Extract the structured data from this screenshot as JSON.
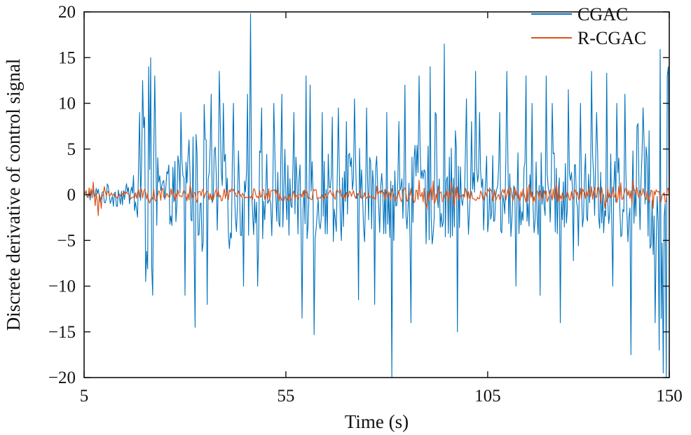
{
  "chart_data": {
    "type": "line",
    "xlabel": "Time (s)",
    "ylabel": "Discrete derivative of control signal",
    "xlim": [
      5,
      150
    ],
    "ylim": [
      -20,
      20
    ],
    "x_ticks": [
      5,
      55,
      105,
      150
    ],
    "y_ticks": [
      20,
      15,
      10,
      5,
      0,
      -5,
      -10,
      -15,
      -20
    ],
    "grid": false,
    "legend": "top-right",
    "x_step": 0.25,
    "series": [
      {
        "name": "CGAC",
        "color": "#0072BD",
        "envelope": [
          {
            "t": 5,
            "a": 0.3
          },
          {
            "t": 8,
            "a": 0.8
          },
          {
            "t": 12,
            "a": 1.2
          },
          {
            "t": 17,
            "a": 1.0
          },
          {
            "t": 18.5,
            "a": 7
          },
          {
            "t": 21,
            "a": 9
          },
          {
            "t": 23,
            "a": 6
          },
          {
            "t": 24,
            "a": 2.5
          },
          {
            "t": 27,
            "a": 3
          },
          {
            "t": 30,
            "a": 6.5
          },
          {
            "t": 35,
            "a": 6
          },
          {
            "t": 40,
            "a": 4
          },
          {
            "t": 45,
            "a": 4.5
          },
          {
            "t": 50,
            "a": 5
          },
          {
            "t": 55,
            "a": 4.5
          },
          {
            "t": 60,
            "a": 5
          },
          {
            "t": 65,
            "a": 4.5
          },
          {
            "t": 70,
            "a": 4.5
          },
          {
            "t": 75,
            "a": 4.5
          },
          {
            "t": 80,
            "a": 4
          },
          {
            "t": 85,
            "a": 4.5
          },
          {
            "t": 90,
            "a": 5
          },
          {
            "t": 95,
            "a": 4.5
          },
          {
            "t": 100,
            "a": 4.5
          },
          {
            "t": 105,
            "a": 4
          },
          {
            "t": 110,
            "a": 4
          },
          {
            "t": 115,
            "a": 4.5
          },
          {
            "t": 120,
            "a": 4
          },
          {
            "t": 125,
            "a": 4
          },
          {
            "t": 130,
            "a": 4
          },
          {
            "t": 135,
            "a": 4
          },
          {
            "t": 140,
            "a": 4.5
          },
          {
            "t": 145,
            "a": 6
          },
          {
            "t": 148,
            "a": 9
          },
          {
            "t": 150,
            "a": 12
          }
        ],
        "spikes": [
          [
            18.8,
            9
          ],
          [
            19.5,
            12.5
          ],
          [
            20.3,
            -9.5
          ],
          [
            21,
            14
          ],
          [
            21.6,
            15
          ],
          [
            22.1,
            -11
          ],
          [
            22.6,
            13
          ],
          [
            29,
            9
          ],
          [
            30,
            -11
          ],
          [
            31,
            6
          ],
          [
            32.6,
            -14.5
          ],
          [
            35.4,
            -12
          ],
          [
            36.6,
            11
          ],
          [
            38.5,
            13.5
          ],
          [
            39.4,
            10
          ],
          [
            42,
            10
          ],
          [
            44.5,
            -10
          ],
          [
            45.5,
            11
          ],
          [
            46.2,
            19.8
          ],
          [
            48,
            -10
          ],
          [
            49,
            9.5
          ],
          [
            52,
            10
          ],
          [
            54,
            11
          ],
          [
            57,
            9
          ],
          [
            59,
            -13.5
          ],
          [
            60,
            13
          ],
          [
            61,
            12
          ],
          [
            62,
            -15.3
          ],
          [
            64,
            9
          ],
          [
            66.4,
            8.5
          ],
          [
            68,
            9.5
          ],
          [
            70,
            8
          ],
          [
            72,
            10.5
          ],
          [
            73,
            -11.5
          ],
          [
            75,
            9.5
          ],
          [
            77,
            -12
          ],
          [
            80,
            9
          ],
          [
            81.2,
            -20
          ],
          [
            83,
            8
          ],
          [
            84.5,
            12
          ],
          [
            86,
            -14
          ],
          [
            88,
            13
          ],
          [
            90.7,
            14
          ],
          [
            92,
            9
          ],
          [
            94.3,
            16.5
          ],
          [
            97,
            7
          ],
          [
            97.5,
            -15
          ],
          [
            99.8,
            10.5
          ],
          [
            101,
            8
          ],
          [
            102,
            13.5
          ],
          [
            103,
            9
          ],
          [
            108,
            9
          ],
          [
            109.8,
            13.5
          ],
          [
            112,
            -10
          ],
          [
            114.5,
            13
          ],
          [
            116,
            10
          ],
          [
            118,
            -11
          ],
          [
            119.5,
            13
          ],
          [
            121,
            10
          ],
          [
            123,
            -14
          ],
          [
            125,
            11.5
          ],
          [
            128,
            10
          ],
          [
            130.7,
            13.5
          ],
          [
            132,
            9
          ],
          [
            134.5,
            13.3
          ],
          [
            136,
            -10
          ],
          [
            137,
            10
          ],
          [
            139,
            11
          ],
          [
            140.4,
            -17.5
          ],
          [
            142,
            7.5
          ],
          [
            143.4,
            9.5
          ],
          [
            145,
            7
          ],
          [
            146.5,
            -14
          ],
          [
            147.5,
            -17
          ],
          [
            148.5,
            -19.5
          ],
          [
            149.3,
            -20
          ],
          [
            149.6,
            13
          ],
          [
            149.8,
            14
          ]
        ]
      },
      {
        "name": "R-CGAC",
        "color": "#D95319",
        "envelope": [
          {
            "t": 5,
            "a": 0.3
          },
          {
            "t": 7,
            "a": 0.9
          },
          {
            "t": 9,
            "a": 0.6
          },
          {
            "t": 12,
            "a": 0.3
          },
          {
            "t": 20,
            "a": 0.6
          },
          {
            "t": 40,
            "a": 0.6
          },
          {
            "t": 60,
            "a": 0.55
          },
          {
            "t": 80,
            "a": 0.6
          },
          {
            "t": 85,
            "a": 0.7
          },
          {
            "t": 90,
            "a": 1.0
          },
          {
            "t": 95,
            "a": 0.8
          },
          {
            "t": 105,
            "a": 0.6
          },
          {
            "t": 115,
            "a": 0.8
          },
          {
            "t": 125,
            "a": 0.8
          },
          {
            "t": 135,
            "a": 0.8
          },
          {
            "t": 150,
            "a": 0.8
          }
        ],
        "spikes": [
          [
            7.2,
            1.4
          ],
          [
            7.8,
            -1.2
          ],
          [
            8.5,
            -2.3
          ],
          [
            9.2,
            -1.5
          ],
          [
            10,
            0.9
          ],
          [
            88,
            1.6
          ],
          [
            90,
            -1.6
          ],
          [
            91.5,
            1.5
          ],
          [
            96,
            1.4
          ],
          [
            122,
            1.3
          ],
          [
            134,
            -1.5
          ],
          [
            138,
            1.3
          ],
          [
            141,
            1.6
          ],
          [
            146,
            -1.5
          ]
        ]
      }
    ]
  }
}
